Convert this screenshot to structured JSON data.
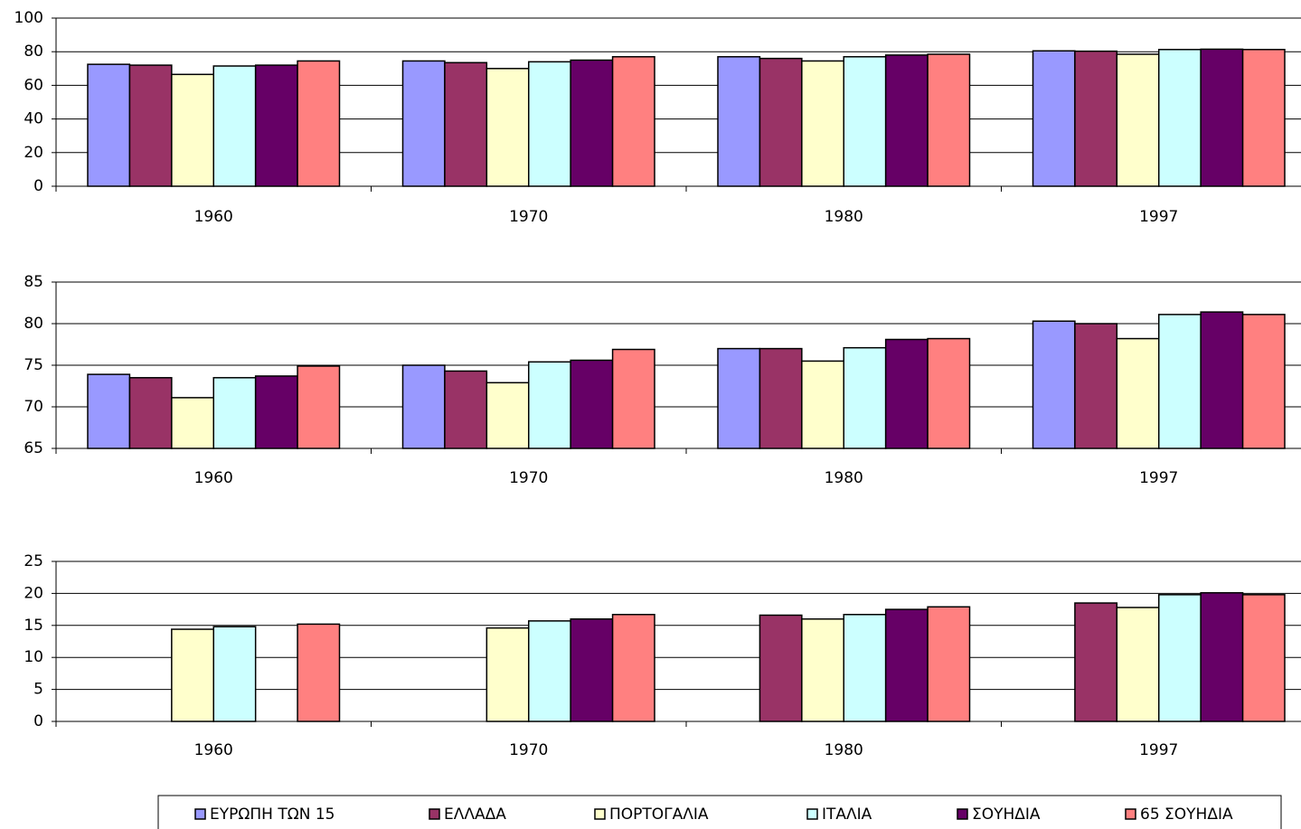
{
  "chart_data": [
    {
      "type": "bar",
      "categories": [
        "1960",
        "1970",
        "1980",
        "1997"
      ],
      "ylim": [
        0,
        100
      ],
      "yticks": [
        0,
        20,
        40,
        60,
        80,
        100
      ],
      "grid": true,
      "series": [
        {
          "values": [
            72.5,
            74.5,
            77,
            80.5
          ]
        },
        {
          "values": [
            72,
            73.5,
            76,
            80.3
          ]
        },
        {
          "values": [
            66.5,
            70,
            74.5,
            78.5
          ]
        },
        {
          "values": [
            71.5,
            74,
            77,
            81.3
          ]
        },
        {
          "values": [
            72,
            75,
            78,
            81.5
          ]
        },
        {
          "values": [
            74.5,
            77,
            78.5,
            81.3
          ]
        }
      ]
    },
    {
      "type": "bar",
      "categories": [
        "1960",
        "1970",
        "1980",
        "1997"
      ],
      "ylim": [
        65,
        85
      ],
      "yticks": [
        65,
        70,
        75,
        80,
        85
      ],
      "grid": true,
      "series": [
        {
          "values": [
            73.9,
            75.0,
            77.0,
            80.3
          ]
        },
        {
          "values": [
            73.5,
            74.3,
            77.0,
            80.0
          ]
        },
        {
          "values": [
            71.1,
            72.9,
            75.5,
            78.2
          ]
        },
        {
          "values": [
            73.5,
            75.4,
            77.1,
            81.1
          ]
        },
        {
          "values": [
            73.7,
            75.6,
            78.1,
            81.4
          ]
        },
        {
          "values": [
            74.9,
            76.9,
            78.2,
            81.1
          ]
        }
      ]
    },
    {
      "type": "bar",
      "categories": [
        "1960",
        "1970",
        "1980",
        "1997"
      ],
      "ylim": [
        0,
        25
      ],
      "yticks": [
        0,
        5,
        10,
        15,
        20,
        25
      ],
      "grid": true,
      "series": [
        {
          "values": [
            null,
            null,
            null,
            null
          ]
        },
        {
          "values": [
            null,
            null,
            16.6,
            18.5
          ]
        },
        {
          "values": [
            14.4,
            14.6,
            16.0,
            17.8
          ]
        },
        {
          "values": [
            14.8,
            15.7,
            16.7,
            19.8
          ]
        },
        {
          "values": [
            null,
            16.0,
            17.5,
            20.1
          ]
        },
        {
          "values": [
            15.2,
            16.7,
            17.9,
            19.8
          ]
        }
      ]
    }
  ],
  "legend": {
    "items": [
      {
        "name": "ΕΥΡΩΠΗ ΤΩΝ 15",
        "color": "#9999ff"
      },
      {
        "name": "ΕΛΛΑΔΑ",
        "color": "#993366"
      },
      {
        "name": "ΠΟΡΤΟΓΑΛΙΑ",
        "color": "#ffffcc"
      },
      {
        "name": "ΙΤΑΛΙΑ",
        "color": "#ccffff"
      },
      {
        "name": "ΣΟΥΗΔΙΑ",
        "color": "#660066"
      },
      {
        "name": "65 ΣΟΥΗΔΙΑ",
        "color": "#ff8080"
      }
    ]
  }
}
